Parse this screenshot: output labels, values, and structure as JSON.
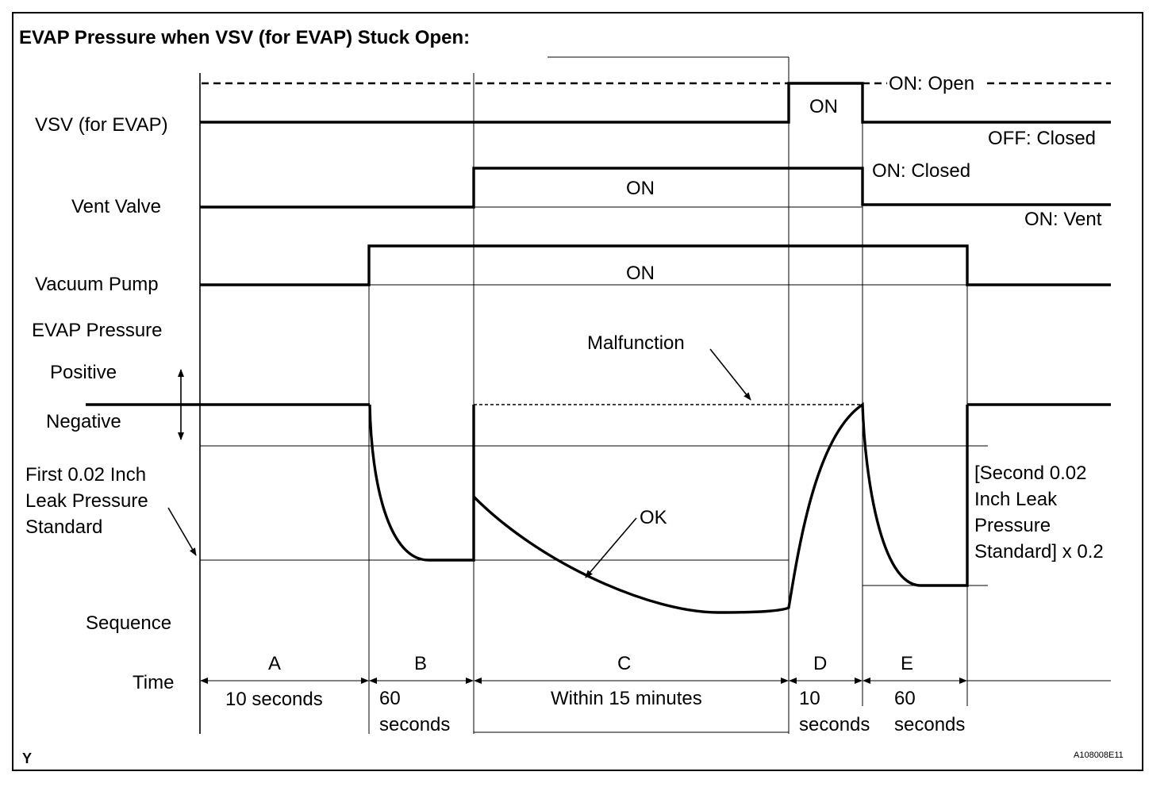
{
  "title": "EVAP Pressure when VSV (for EVAP) Stuck Open:",
  "rows": {
    "vsv": "VSV (for EVAP)",
    "vent_valve": "Vent Valve",
    "vacuum_pump": "Vacuum Pump",
    "evap_pressure": "EVAP Pressure",
    "positive": "Positive",
    "negative": "Negative",
    "sequence": "Sequence",
    "time": "Time"
  },
  "first_standard": [
    "First 0.02 Inch",
    "Leak Pressure",
    "Standard"
  ],
  "second_standard": [
    "[Second 0.02",
    "Inch Leak",
    "Pressure",
    "Standard] x 0.2"
  ],
  "state_labels": {
    "vsv_on": "ON",
    "on_open": "ON: Open",
    "off_closed": "OFF: Closed",
    "vent_on": "ON",
    "on_closed": "ON: Closed",
    "on_vent": "ON: Vent",
    "pump_on": "ON"
  },
  "annotations": {
    "malfunction": "Malfunction",
    "ok": "OK"
  },
  "sequence": [
    {
      "letter": "A",
      "time": [
        "10 seconds"
      ]
    },
    {
      "letter": "B",
      "time": [
        "60",
        "seconds"
      ]
    },
    {
      "letter": "C",
      "time": [
        "Within 15 minutes"
      ]
    },
    {
      "letter": "D",
      "time": [
        "10",
        "seconds"
      ]
    },
    {
      "letter": "E",
      "time": [
        "60",
        "seconds"
      ]
    }
  ],
  "footer": {
    "left": "Y",
    "right": "A108008E11"
  }
}
